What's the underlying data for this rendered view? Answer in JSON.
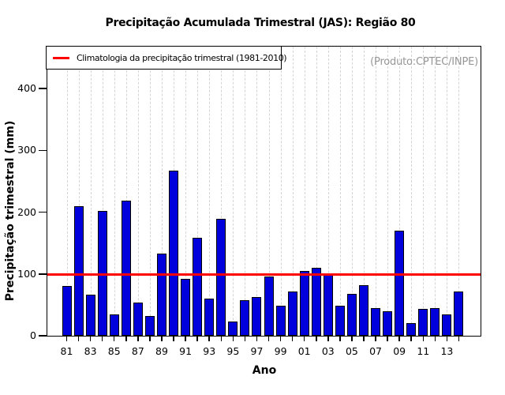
{
  "chart_data": {
    "type": "bar",
    "title": "Precipitação Acumulada Trimestral (JAS): Região 80",
    "xlabel": "Ano",
    "ylabel": "Precipitação trimestral (mm)",
    "annotation": "(Produto:CPTEC/INPE)",
    "legend": {
      "label": "Climatologia da precipitação trimestral (1981-2010)",
      "position": "top-left"
    },
    "categories": [
      1981,
      1982,
      1983,
      1984,
      1985,
      1986,
      1987,
      1988,
      1989,
      1990,
      1991,
      1992,
      1993,
      1994,
      1995,
      1996,
      1997,
      1998,
      1999,
      2000,
      2001,
      2002,
      2003,
      2004,
      2005,
      2006,
      2007,
      2008,
      2009,
      2010,
      2011,
      2012,
      2013,
      2014
    ],
    "values": [
      81,
      210,
      66,
      202,
      35,
      219,
      54,
      32,
      133,
      267,
      92,
      158,
      60,
      189,
      23,
      57,
      63,
      96,
      48,
      71,
      105,
      110,
      101,
      49,
      68,
      82,
      45,
      40,
      170,
      20,
      44,
      45,
      34,
      72
    ],
    "xtick_labels": [
      "81",
      "83",
      "85",
      "87",
      "89",
      "91",
      "93",
      "95",
      "97",
      "99",
      "01",
      "03",
      "05",
      "07",
      "09",
      "11",
      "13"
    ],
    "yticks": [
      0,
      100,
      200,
      300,
      400
    ],
    "ylim": [
      0,
      468
    ],
    "climatology_value": 99,
    "grid": true,
    "legend_position": "top-left",
    "colors": {
      "bar_fill": "#0000dd",
      "bar_border": "#000000",
      "climatology_line": "#ff0000",
      "gridline": "#d4d4d4",
      "annotation_text": "#969696",
      "axis": "#000000"
    }
  }
}
